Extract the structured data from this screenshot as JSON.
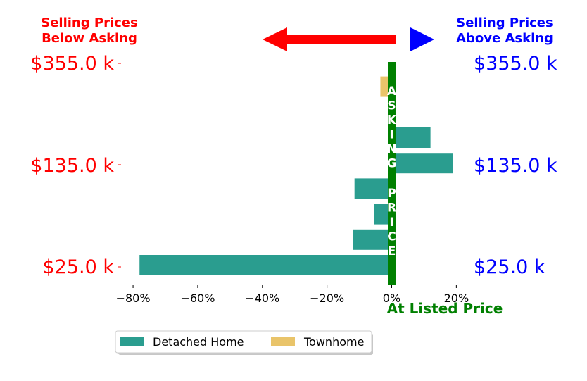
{
  "header": {
    "below_line1": "Selling Prices",
    "below_line2": "Below Asking",
    "above_line1": "Selling Prices",
    "above_line2": "Above Asking"
  },
  "price_labels": [
    "$355.0 k",
    "$135.0 k",
    "$25.0 k"
  ],
  "vertical_label_top": "ASKING",
  "vertical_label_bottom": "PRICE",
  "listed_label": "At Listed Price",
  "colors": {
    "below": "#ff0000",
    "above": "#0000ff",
    "center": "#008000",
    "detached": "#2a9d8f",
    "townhome": "#e9c46a"
  },
  "chart_data": {
    "type": "bar",
    "orientation": "horizontal",
    "x": [
      1,
      2,
      3,
      4,
      5,
      6,
      7,
      8
    ],
    "series": [
      {
        "name": "Detached Home",
        "values": [
          -78,
          -12,
          -5.5,
          -11.5,
          19,
          12,
          1,
          null
        ]
      },
      {
        "name": "Townhome",
        "values": [
          null,
          null,
          null,
          null,
          null,
          null,
          null,
          -3.5
        ]
      }
    ],
    "xlim": [
      -84,
      22
    ],
    "xticks": [
      -80,
      -60,
      -40,
      -20,
      0,
      20
    ],
    "xtick_labels": [
      "−80%",
      "−60%",
      "−40%",
      "−20%",
      "0%",
      "20%"
    ],
    "legend": [
      "Detached Home",
      "Townhome"
    ],
    "legend_placement": "bottom-center"
  }
}
